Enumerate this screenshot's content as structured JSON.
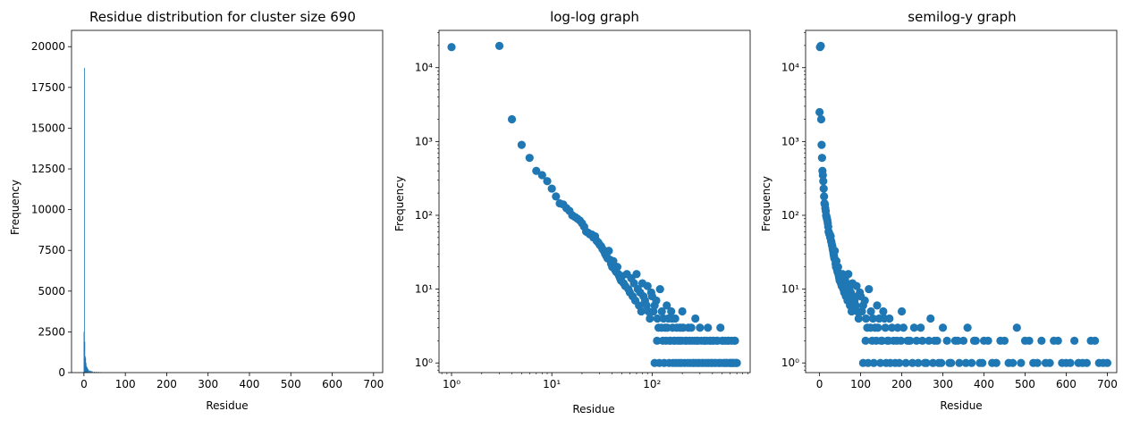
{
  "chart_data": [
    {
      "type": "bar",
      "title": "Residue distribution for cluster size 690",
      "xlabel": "Residue",
      "ylabel": "Frequency",
      "xlim": [
        -30,
        722
      ],
      "ylim": [
        0,
        21000
      ],
      "xticks": [
        0,
        100,
        200,
        300,
        400,
        500,
        600,
        700
      ],
      "xtick_labels": [
        "0",
        "100",
        "200",
        "300",
        "400",
        "500",
        "600",
        "700"
      ],
      "yticks": [
        0,
        2500,
        5000,
        7500,
        10000,
        12500,
        15000,
        17500,
        20000
      ],
      "ytick_labels": [
        "0",
        "2500",
        "5000",
        "7500",
        "10000",
        "12500",
        "15000",
        "17500",
        "20000"
      ],
      "bar_width": 1.5,
      "bar_color": "#1f77b4",
      "x": [
        0,
        1,
        2,
        3,
        4,
        5,
        6,
        7,
        8,
        9,
        10,
        12,
        14,
        16,
        18,
        20,
        25,
        30,
        35,
        40
      ],
      "values": [
        2500,
        18700,
        1900,
        1000,
        900,
        600,
        400,
        350,
        300,
        250,
        200,
        150,
        130,
        110,
        90,
        80,
        60,
        50,
        40,
        30
      ]
    },
    {
      "type": "scatter",
      "title": "log-log graph",
      "xlabel": "Residue",
      "ylabel": "Frequency",
      "xscale": "log",
      "yscale": "log",
      "xlim": [
        0.75,
        950
      ],
      "ylim": [
        0.74,
        32000
      ],
      "xticks": [
        1,
        10,
        100
      ],
      "xtick_labels": [
        "10⁰",
        "10¹",
        "10²"
      ],
      "yticks": [
        1,
        10,
        100,
        1000,
        10000
      ],
      "ytick_labels": [
        "10⁰",
        "10¹",
        "10²",
        "10³",
        "10⁴"
      ],
      "marker_color": "#1f77b4",
      "points": [
        [
          1,
          19000
        ],
        [
          3,
          19700
        ],
        [
          4,
          2000
        ],
        [
          5,
          900
        ],
        [
          6,
          600
        ],
        [
          7,
          400
        ],
        [
          8,
          350
        ],
        [
          9,
          290
        ],
        [
          10,
          230
        ],
        [
          11,
          180
        ],
        [
          12,
          145
        ],
        [
          13,
          140
        ],
        [
          14,
          125
        ],
        [
          15,
          115
        ],
        [
          16,
          100
        ],
        [
          17,
          95
        ],
        [
          18,
          90
        ],
        [
          19,
          85
        ],
        [
          20,
          78
        ],
        [
          21,
          70
        ],
        [
          22,
          60
        ],
        [
          23,
          58
        ],
        [
          24,
          55
        ],
        [
          25,
          55
        ],
        [
          26,
          50
        ],
        [
          27,
          52
        ],
        [
          28,
          45
        ],
        [
          29,
          43
        ],
        [
          30,
          40
        ],
        [
          31,
          38
        ],
        [
          32,
          35
        ],
        [
          33,
          33
        ],
        [
          34,
          30
        ],
        [
          35,
          28
        ],
        [
          36,
          26
        ],
        [
          37,
          33
        ],
        [
          38,
          25
        ],
        [
          39,
          22
        ],
        [
          40,
          20
        ],
        [
          41,
          24
        ],
        [
          42,
          19
        ],
        [
          43,
          18
        ],
        [
          44,
          17
        ],
        [
          45,
          20
        ],
        [
          46,
          16
        ],
        [
          47,
          15
        ],
        [
          48,
          14
        ],
        [
          49,
          13
        ],
        [
          50,
          15
        ],
        [
          52,
          12
        ],
        [
          54,
          11
        ],
        [
          56,
          16
        ],
        [
          58,
          10
        ],
        [
          60,
          9
        ],
        [
          62,
          14
        ],
        [
          64,
          8
        ],
        [
          66,
          12
        ],
        [
          68,
          7
        ],
        [
          70,
          16
        ],
        [
          72,
          10
        ],
        [
          74,
          6
        ],
        [
          76,
          9
        ],
        [
          78,
          5
        ],
        [
          80,
          12
        ],
        [
          82,
          8
        ],
        [
          85,
          7
        ],
        [
          88,
          6
        ],
        [
          90,
          11
        ],
        [
          92,
          5
        ],
        [
          95,
          4
        ],
        [
          98,
          9
        ],
        [
          100,
          8
        ],
        [
          103,
          5
        ],
        [
          106,
          6
        ],
        [
          110,
          7
        ],
        [
          113,
          4
        ],
        [
          116,
          3
        ],
        [
          120,
          10
        ],
        [
          125,
          5
        ],
        [
          130,
          4
        ],
        [
          135,
          3
        ],
        [
          140,
          6
        ],
        [
          145,
          4
        ],
        [
          150,
          2
        ],
        [
          155,
          5
        ],
        [
          160,
          3
        ],
        [
          165,
          2
        ],
        [
          170,
          4
        ],
        [
          180,
          2
        ],
        [
          190,
          3
        ],
        [
          200,
          5
        ],
        [
          210,
          1
        ],
        [
          220,
          2
        ],
        [
          230,
          3
        ],
        [
          240,
          1
        ],
        [
          250,
          2
        ],
        [
          260,
          1
        ],
        [
          270,
          4
        ],
        [
          280,
          2
        ],
        [
          290,
          1
        ],
        [
          300,
          3
        ],
        [
          310,
          2
        ],
        [
          320,
          1
        ],
        [
          330,
          2
        ],
        [
          340,
          1
        ],
        [
          350,
          2
        ],
        [
          360,
          3
        ],
        [
          370,
          1
        ],
        [
          380,
          2
        ],
        [
          390,
          1
        ],
        [
          400,
          2
        ],
        [
          420,
          1
        ],
        [
          440,
          2
        ],
        [
          460,
          1
        ],
        [
          480,
          3
        ],
        [
          500,
          2
        ],
        [
          520,
          1
        ],
        [
          540,
          2
        ],
        [
          560,
          1
        ],
        [
          580,
          2
        ],
        [
          600,
          1
        ],
        [
          620,
          2
        ],
        [
          640,
          1
        ],
        [
          660,
          2
        ],
        [
          680,
          1
        ],
        [
          700,
          1
        ],
        [
          106,
          1
        ],
        [
          112,
          2
        ],
        [
          118,
          1
        ],
        [
          124,
          3
        ],
        [
          128,
          2
        ],
        [
          132,
          1
        ],
        [
          138,
          2
        ],
        [
          142,
          3
        ],
        [
          148,
          1
        ],
        [
          152,
          2
        ],
        [
          158,
          4
        ],
        [
          162,
          1
        ],
        [
          168,
          2
        ],
        [
          172,
          1
        ],
        [
          176,
          3
        ],
        [
          184,
          1
        ],
        [
          188,
          2
        ],
        [
          194,
          1
        ],
        [
          198,
          2
        ],
        [
          204,
          3
        ],
        [
          214,
          2
        ],
        [
          226,
          1
        ],
        [
          236,
          2
        ],
        [
          246,
          3
        ],
        [
          256,
          1
        ],
        [
          266,
          2
        ],
        [
          276,
          1
        ],
        [
          286,
          2
        ],
        [
          296,
          1
        ],
        [
          316,
          1
        ],
        [
          336,
          2
        ],
        [
          356,
          1
        ],
        [
          376,
          2
        ],
        [
          396,
          1
        ],
        [
          410,
          2
        ],
        [
          430,
          1
        ],
        [
          450,
          2
        ],
        [
          470,
          1
        ],
        [
          490,
          1
        ],
        [
          510,
          2
        ],
        [
          530,
          1
        ],
        [
          550,
          1
        ],
        [
          570,
          2
        ],
        [
          590,
          1
        ],
        [
          610,
          1
        ],
        [
          630,
          1
        ],
        [
          650,
          1
        ],
        [
          670,
          2
        ],
        [
          690,
          1
        ]
      ]
    },
    {
      "type": "scatter",
      "title": "semilog-y graph",
      "xlabel": "Residue",
      "ylabel": "Frequency",
      "xscale": "linear",
      "yscale": "log",
      "xlim": [
        -34,
        723
      ],
      "ylim": [
        0.74,
        32000
      ],
      "xticks": [
        0,
        100,
        200,
        300,
        400,
        500,
        600,
        700
      ],
      "xtick_labels": [
        "0",
        "100",
        "200",
        "300",
        "400",
        "500",
        "600",
        "700"
      ],
      "yticks": [
        1,
        10,
        100,
        1000,
        10000
      ],
      "ytick_labels": [
        "10⁰",
        "10¹",
        "10²",
        "10³",
        "10⁴"
      ],
      "marker_color": "#1f77b4",
      "points_ref": "same as log-log graph points",
      "extra_points": [
        [
          0,
          2500
        ]
      ]
    }
  ]
}
